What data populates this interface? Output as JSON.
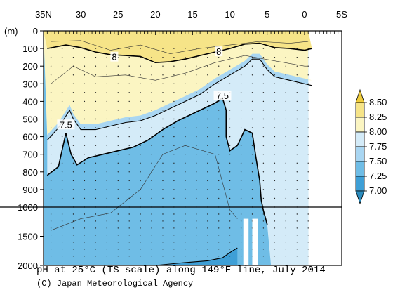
{
  "caption": {
    "title": "pH at 25°C (TS scale) along 149°E line, July 2014",
    "credit": "(C) Japan Meteorological Agency"
  },
  "colors": {
    "c_lt_7_00": "#2b8cbe",
    "c_7_00_7_25": "#3e9fd6",
    "c_7_25_7_50": "#6fbde6",
    "c_7_50_7_75": "#a9d6f2",
    "c_7_75_8_00": "#d4ebf8",
    "c_8_00_8_25": "#fbf5c2",
    "c_8_25_8_50": "#f6e488",
    "c_gt_8_50": "#f0cd3d"
  },
  "chart_data": {
    "type": "heatmap",
    "title": "pH at 25°C (TS scale) along 149°E line, July 2014",
    "variable": "pH at 25°C (TS scale)",
    "section": "149°E line",
    "date": "July 2014",
    "x_axis": {
      "tick_labels": [
        "35N",
        "30",
        "25",
        "20",
        "15",
        "10",
        "5",
        "0",
        "5S"
      ],
      "tick_values": [
        35,
        30,
        25,
        20,
        15,
        10,
        5,
        0,
        -5
      ],
      "range": [
        35,
        -5
      ],
      "unit": "latitude"
    },
    "y_axis": {
      "unit_label": "(m)",
      "tick_labels": [
        "0",
        "100",
        "200",
        "300",
        "400",
        "500",
        "600",
        "700",
        "800",
        "900",
        "1000",
        "1500",
        "2000"
      ],
      "range": [
        0,
        2000
      ],
      "scale_break": 1000,
      "direction": "downward"
    },
    "colorbar": {
      "labels": [
        "8.50",
        "8.25",
        "8.00",
        "7.75",
        "7.50",
        "7.25",
        "7.00"
      ],
      "boundaries": [
        8.5,
        8.25,
        8.0,
        7.75,
        7.5,
        7.25,
        7.0
      ],
      "extend": "both"
    },
    "contour_labels": [
      {
        "text": "8",
        "value": 8.0,
        "lat": 25.5,
        "depth_m": 150
      },
      {
        "text": "8",
        "value": 8.0,
        "lat": 11.5,
        "depth_m": 120
      },
      {
        "text": "7.5",
        "value": 7.5,
        "lat": 11.0,
        "depth_m": 370
      },
      {
        "text": "7.5",
        "value": 7.5,
        "lat": 32.0,
        "depth_m": 535
      }
    ],
    "contours": [
      {
        "level": 8.0,
        "lat": [
          34.5,
          32,
          30,
          28,
          26,
          24,
          22,
          20,
          18,
          16,
          14,
          12,
          10,
          8,
          6,
          4,
          2,
          0,
          -1
        ],
        "depth_m": [
          100,
          80,
          95,
          120,
          135,
          140,
          145,
          180,
          175,
          160,
          140,
          120,
          100,
          75,
          70,
          95,
          100,
          110,
          100
        ]
      },
      {
        "level": 7.75,
        "lat": [
          34.5,
          33,
          31.5,
          31,
          30,
          28,
          26,
          24,
          22,
          20,
          18,
          16,
          14,
          12,
          10,
          8,
          7,
          6,
          5,
          4,
          2,
          0,
          -1
        ],
        "depth_m": [
          620,
          550,
          450,
          500,
          560,
          560,
          540,
          520,
          510,
          480,
          440,
          400,
          360,
          300,
          250,
          200,
          160,
          160,
          220,
          260,
          280,
          300,
          310
        ]
      },
      {
        "level": 7.5,
        "lat": [
          34.5,
          33,
          32,
          31.3,
          30.5,
          29,
          27,
          25,
          23,
          21,
          19,
          17,
          15,
          13,
          12,
          11,
          10.5,
          10.5,
          10,
          9,
          8,
          7,
          6.5,
          6,
          5.8,
          5.5,
          5.2,
          5.0
        ],
        "depth_m": [
          820,
          770,
          580,
          700,
          760,
          720,
          700,
          680,
          660,
          620,
          560,
          510,
          470,
          430,
          410,
          380,
          450,
          600,
          680,
          650,
          560,
          580,
          720,
          850,
          960,
          1060,
          1200,
          1300
        ]
      },
      {
        "level": 7.25,
        "lat": [
          20,
          16,
          13,
          11,
          10,
          9
        ],
        "depth_m": [
          2000,
          1950,
          1920,
          1870,
          1780,
          1700
        ]
      }
    ],
    "no_data": [
      {
        "lat_range": [
          8.2,
          7.5
        ],
        "depth_m": [
          1200,
          2000
        ]
      },
      {
        "lat_range": [
          7.0,
          6.2
        ],
        "depth_m": [
          1200,
          2000
        ]
      }
    ]
  }
}
